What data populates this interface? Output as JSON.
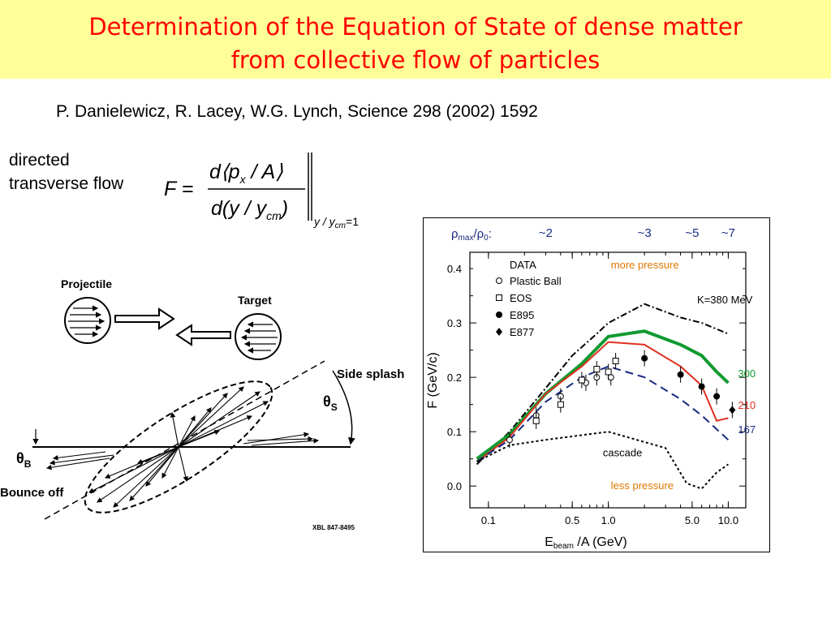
{
  "slide": {
    "title_line1": "Determination of the Equation of State of dense matter",
    "title_line2": "from collective flow of particles",
    "citation": "P. Danielewicz, R. Lacey, W.G. Lynch, Science 298 (2002) 1592",
    "side_label_line1": "directed",
    "side_label_line2": "transverse flow"
  },
  "formula": {
    "lhs": "F =",
    "numerator": "d⟨p",
    "numerator_sub": "x",
    "numerator_tail": " / A⟩",
    "denominator": "d(y / y",
    "denominator_sub": "cm",
    "denominator_tail": ")",
    "evaluated_at": "y / y",
    "evaluated_sub": "cm",
    "evaluated_tail": "=1"
  },
  "schematic": {
    "projectile_label": "Projectile",
    "target_label": "Target",
    "side_splash_label": "Side  splash",
    "theta_s_label": "θ",
    "theta_s_sub": "S",
    "theta_b_label": "θ",
    "theta_b_sub": "B",
    "bounce_off_label": "Bounce  off",
    "figure_code": "XBL 847-8495"
  },
  "chart_data": {
    "type": "line",
    "ratio_label": "ρ",
    "ratio_label_sub1": "max",
    "ratio_label_mid": "/ρ",
    "ratio_label_sub2": "0",
    "ratio_label_tail": ":",
    "top_annotations": [
      {
        "x": 0.3,
        "text": "~2"
      },
      {
        "x": 2.0,
        "text": "~3"
      },
      {
        "x": 5.0,
        "text": "~5"
      },
      {
        "x": 10.0,
        "text": "~7"
      }
    ],
    "xlabel": "E",
    "xlabel_sub": "beam",
    "xlabel_tail": " /A (GeV)",
    "ylabel": "F (GeV/c)",
    "xscale": "log",
    "xlim": [
      0.07,
      14
    ],
    "ylim": [
      -0.04,
      0.43
    ],
    "xticks": [
      {
        "v": 0.1,
        "label": "0.1"
      },
      {
        "v": 0.5,
        "label": "0.5"
      },
      {
        "v": 1.0,
        "label": "1.0"
      },
      {
        "v": 5.0,
        "label": "5.0"
      },
      {
        "v": 10.0,
        "label": "10.0"
      }
    ],
    "yticks": [
      {
        "v": 0.0,
        "label": "0.0"
      },
      {
        "v": 0.1,
        "label": "0.1"
      },
      {
        "v": 0.2,
        "label": "0.2"
      },
      {
        "v": 0.3,
        "label": "0.3"
      },
      {
        "v": 0.4,
        "label": "0.4"
      }
    ],
    "legend_title": "DATA",
    "legend": [
      {
        "name": "Plastic Ball",
        "marker": "open-circle"
      },
      {
        "name": "EOS",
        "marker": "open-square"
      },
      {
        "name": "E895",
        "marker": "filled-circle"
      },
      {
        "name": "E877",
        "marker": "filled-diamond"
      }
    ],
    "annotations": [
      {
        "text": "more pressure",
        "color": "#e07800"
      },
      {
        "text": "less pressure",
        "color": "#e07800"
      },
      {
        "text": "K=380 MeV",
        "color": "#000000"
      },
      {
        "text": "cascade",
        "color": "#000000"
      }
    ],
    "series": [
      {
        "name": "K=380 MeV",
        "style": "dash-dot",
        "color": "#000000",
        "points": [
          [
            0.08,
            0.04
          ],
          [
            0.15,
            0.1
          ],
          [
            0.3,
            0.18
          ],
          [
            0.5,
            0.24
          ],
          [
            0.8,
            0.28
          ],
          [
            1.0,
            0.3
          ],
          [
            2.0,
            0.335
          ],
          [
            4.0,
            0.31
          ],
          [
            6.0,
            0.3
          ],
          [
            10.0,
            0.28
          ]
        ]
      },
      {
        "name": "300",
        "style": "solid",
        "color": "#109a30",
        "points": [
          [
            0.08,
            0.05
          ],
          [
            0.15,
            0.095
          ],
          [
            0.3,
            0.17
          ],
          [
            0.6,
            0.225
          ],
          [
            1.0,
            0.275
          ],
          [
            2.0,
            0.285
          ],
          [
            4.0,
            0.26
          ],
          [
            6.0,
            0.24
          ],
          [
            8.0,
            0.21
          ],
          [
            10.0,
            0.19
          ]
        ]
      },
      {
        "name": "210",
        "style": "solid",
        "color": "#e03020",
        "points": [
          [
            0.08,
            0.045
          ],
          [
            0.15,
            0.09
          ],
          [
            0.3,
            0.17
          ],
          [
            0.6,
            0.22
          ],
          [
            1.0,
            0.265
          ],
          [
            2.0,
            0.26
          ],
          [
            4.0,
            0.22
          ],
          [
            6.0,
            0.185
          ],
          [
            8.0,
            0.12
          ],
          [
            10.0,
            0.125
          ]
        ]
      },
      {
        "name": "167",
        "style": "dashed",
        "color": "#1a2a80",
        "points": [
          [
            0.08,
            0.045
          ],
          [
            0.15,
            0.085
          ],
          [
            0.3,
            0.155
          ],
          [
            0.6,
            0.2
          ],
          [
            1.0,
            0.22
          ],
          [
            2.0,
            0.2
          ],
          [
            4.0,
            0.16
          ],
          [
            6.0,
            0.13
          ],
          [
            10.0,
            0.085
          ]
        ]
      },
      {
        "name": "cascade",
        "style": "dotted",
        "color": "#000000",
        "points": [
          [
            0.08,
            0.045
          ],
          [
            0.15,
            0.075
          ],
          [
            0.3,
            0.085
          ],
          [
            1.0,
            0.1
          ],
          [
            3.0,
            0.07
          ],
          [
            4.5,
            0.005
          ],
          [
            6.0,
            -0.005
          ],
          [
            8.0,
            0.025
          ],
          [
            10.0,
            0.04
          ]
        ]
      }
    ],
    "data_points": [
      {
        "set": "Plastic Ball",
        "marker": "open-circle",
        "x": 0.15,
        "y": 0.085
      },
      {
        "set": "Plastic Ball",
        "marker": "open-circle",
        "x": 0.25,
        "y": 0.13
      },
      {
        "set": "Plastic Ball",
        "marker": "open-circle",
        "x": 0.4,
        "y": 0.165
      },
      {
        "set": "Plastic Ball",
        "marker": "open-circle",
        "x": 0.65,
        "y": 0.19
      },
      {
        "set": "Plastic Ball",
        "marker": "open-circle",
        "x": 0.8,
        "y": 0.2
      },
      {
        "set": "Plastic Ball",
        "marker": "open-circle",
        "x": 1.05,
        "y": 0.2
      },
      {
        "set": "EOS",
        "marker": "open-square",
        "x": 0.25,
        "y": 0.12
      },
      {
        "set": "EOS",
        "marker": "open-square",
        "x": 0.4,
        "y": 0.15
      },
      {
        "set": "EOS",
        "marker": "open-square",
        "x": 0.6,
        "y": 0.195
      },
      {
        "set": "EOS",
        "marker": "open-square",
        "x": 0.8,
        "y": 0.215
      },
      {
        "set": "EOS",
        "marker": "open-square",
        "x": 1.0,
        "y": 0.21
      },
      {
        "set": "EOS",
        "marker": "open-square",
        "x": 1.15,
        "y": 0.23
      },
      {
        "set": "E895",
        "marker": "filled-circle",
        "x": 2.0,
        "y": 0.235
      },
      {
        "set": "E895",
        "marker": "filled-circle",
        "x": 4.0,
        "y": 0.205
      },
      {
        "set": "E895",
        "marker": "filled-circle",
        "x": 6.0,
        "y": 0.183
      },
      {
        "set": "E895",
        "marker": "filled-circle",
        "x": 8.0,
        "y": 0.165
      },
      {
        "set": "E877",
        "marker": "filled-diamond",
        "x": 10.8,
        "y": 0.14
      }
    ]
  }
}
